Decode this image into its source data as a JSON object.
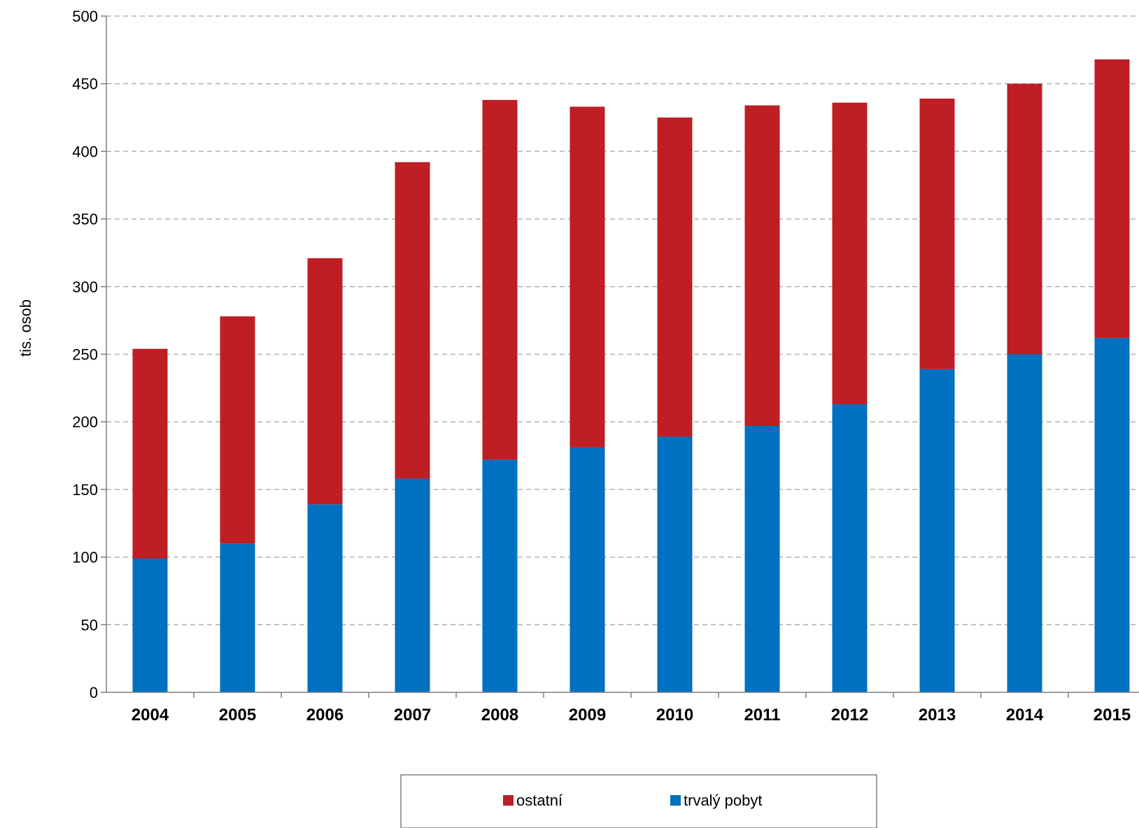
{
  "chart_data": {
    "type": "bar",
    "stacked": true,
    "categories": [
      "2004",
      "2005",
      "2006",
      "2007",
      "2008",
      "2009",
      "2010",
      "2011",
      "2012",
      "2013",
      "2014",
      "2015"
    ],
    "series": [
      {
        "name": "trvalý pobyt",
        "color": "#0070C0",
        "values": [
          99,
          110,
          139,
          158,
          172,
          181,
          189,
          197,
          213,
          239,
          250,
          262
        ]
      },
      {
        "name": "ostatní",
        "color": "#BE1E24",
        "values": [
          155,
          168,
          182,
          234,
          266,
          252,
          236,
          237,
          223,
          200,
          200,
          206
        ]
      }
    ],
    "ylabel": "tis. osob",
    "xlabel": "",
    "ylim": [
      0,
      500
    ],
    "yticks": [
      0,
      50,
      100,
      150,
      200,
      250,
      300,
      350,
      400,
      450,
      500
    ],
    "grid": true,
    "legend_position": "bottom",
    "legend_order": [
      "ostatní",
      "trvalý pobyt"
    ]
  }
}
